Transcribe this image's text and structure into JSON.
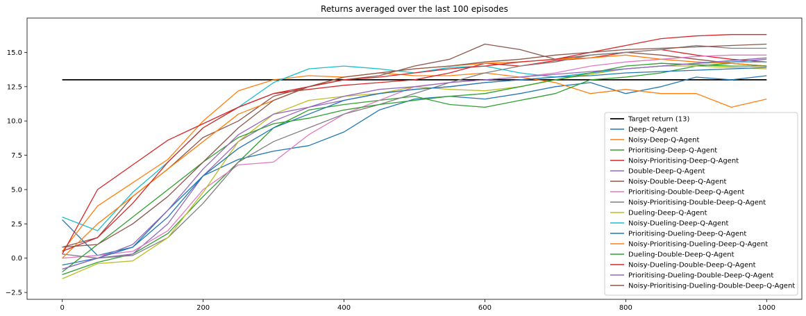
{
  "chart_data": {
    "type": "line",
    "title": "Returns averaged over the last 100 episodes",
    "xlabel": "",
    "ylabel": "",
    "xlim": [
      -50,
      1050
    ],
    "ylim": [
      -3,
      17.5
    ],
    "xticks": [
      0,
      200,
      400,
      600,
      800,
      1000
    ],
    "yticks": [
      -2.5,
      0.0,
      2.5,
      5.0,
      7.5,
      10.0,
      12.5,
      15.0
    ],
    "xtick_labels": [
      "0",
      "200",
      "400",
      "600",
      "800",
      "1000"
    ],
    "ytick_labels": [
      "−2.5",
      "0.0",
      "2.5",
      "5.0",
      "7.5",
      "10.0",
      "12.5",
      "15.0"
    ],
    "grid": false,
    "legend_position": "lower-right",
    "x": [
      0,
      50,
      100,
      150,
      200,
      250,
      300,
      350,
      400,
      450,
      500,
      550,
      600,
      650,
      700,
      750,
      800,
      850,
      900,
      950,
      1000
    ],
    "series": [
      {
        "name": "Target return (13)",
        "color": "#000000",
        "values": [
          13,
          13,
          13,
          13,
          13,
          13,
          13,
          13,
          13,
          13,
          13,
          13,
          13,
          13,
          13,
          13,
          13,
          13,
          13,
          13,
          13
        ]
      },
      {
        "name": "Deep-Q-Agent",
        "color": "#1f77b4",
        "values": [
          2.8,
          0.2,
          0.8,
          3.5,
          6.0,
          7.2,
          7.8,
          8.2,
          9.2,
          10.8,
          11.6,
          11.8,
          11.6,
          12.0,
          12.5,
          12.8,
          12.0,
          12.5,
          13.2,
          13.0,
          13.3
        ]
      },
      {
        "name": "Noisy-Deep-Q-Agent",
        "color": "#ff7f0e",
        "values": [
          0.5,
          3.8,
          5.5,
          7.2,
          10.0,
          12.2,
          13.0,
          13.3,
          13.2,
          13.5,
          13.3,
          13.3,
          13.5,
          13.2,
          12.8,
          12.0,
          12.3,
          12.0,
          12.0,
          11.0,
          11.6
        ]
      },
      {
        "name": "Prioritising-Deep-Q-Agent",
        "color": "#2ca02c",
        "values": [
          -1.2,
          -0.3,
          0.3,
          1.8,
          4.5,
          7.0,
          9.5,
          10.8,
          11.2,
          11.5,
          11.8,
          11.2,
          11.0,
          11.5,
          12.0,
          13.0,
          13.2,
          13.5,
          14.0,
          14.2,
          14.0
        ]
      },
      {
        "name": "Noisy-Prioritising-Deep-Q-Agent",
        "color": "#d62728",
        "values": [
          0.3,
          5.0,
          6.8,
          8.6,
          9.8,
          11.0,
          12.0,
          12.3,
          12.6,
          12.8,
          13.0,
          13.5,
          14.2,
          14.0,
          14.4,
          14.6,
          15.0,
          15.2,
          14.8,
          14.5,
          14.3
        ]
      },
      {
        "name": "Double-Deep-Q-Agent",
        "color": "#9467bd",
        "values": [
          -0.8,
          0.0,
          0.3,
          2.5,
          6.0,
          8.5,
          10.0,
          11.0,
          11.5,
          12.0,
          12.3,
          12.5,
          12.8,
          13.0,
          13.2,
          13.5,
          13.8,
          14.0,
          14.2,
          14.3,
          14.5
        ]
      },
      {
        "name": "Noisy-Double-Deep-Q-Agent",
        "color": "#8c564b",
        "values": [
          0.8,
          1.5,
          4.5,
          6.5,
          8.8,
          10.0,
          11.8,
          12.5,
          13.0,
          13.3,
          14.0,
          14.5,
          15.6,
          15.2,
          14.5,
          14.8,
          15.0,
          14.8,
          14.5,
          14.2,
          14.0
        ]
      },
      {
        "name": "Prioritising-Double-Deep-Q-Agent",
        "color": "#e377c2",
        "values": [
          0.0,
          0.2,
          0.5,
          2.0,
          5.0,
          6.8,
          7.0,
          9.0,
          10.5,
          11.5,
          12.5,
          12.8,
          13.0,
          13.2,
          13.5,
          14.0,
          14.3,
          14.5,
          14.7,
          14.8,
          14.8
        ]
      },
      {
        "name": "Noisy-Prioritising-Double-Deep-Q-Agent",
        "color": "#7f7f7f",
        "values": [
          0.3,
          0.0,
          0.2,
          1.5,
          4.0,
          7.0,
          8.5,
          9.5,
          10.5,
          11.2,
          12.0,
          12.8,
          13.5,
          14.0,
          14.3,
          14.8,
          15.0,
          15.2,
          15.5,
          15.3,
          15.3
        ]
      },
      {
        "name": "Dueling-Deep-Q-Agent",
        "color": "#bcbd22",
        "values": [
          -1.5,
          -0.4,
          -0.2,
          1.5,
          4.8,
          8.5,
          10.5,
          11.5,
          11.8,
          12.0,
          12.5,
          12.3,
          12.2,
          12.5,
          13.0,
          13.4,
          13.8,
          14.0,
          14.0,
          13.9,
          13.8
        ]
      },
      {
        "name": "Noisy-Dueling-Deep-Q-Agent",
        "color": "#17becf",
        "values": [
          3.0,
          2.0,
          4.8,
          7.0,
          9.5,
          11.0,
          12.8,
          13.8,
          14.0,
          13.8,
          13.5,
          13.9,
          14.0,
          13.5,
          13.2,
          13.5,
          13.8,
          14.0,
          14.2,
          14.3,
          14.3
        ]
      },
      {
        "name": "Prioritising-Dueling-Deep-Q-Agent",
        "color": "#1f77b4",
        "values": [
          -0.5,
          0.0,
          0.8,
          3.0,
          6.0,
          8.0,
          9.5,
          10.5,
          11.5,
          12.0,
          12.3,
          12.5,
          12.8,
          13.0,
          13.2,
          13.3,
          13.5,
          13.6,
          13.7,
          13.8,
          13.9
        ]
      },
      {
        "name": "Noisy-Prioritising-Dueling-Deep-Q-Agent",
        "color": "#ff7f0e",
        "values": [
          0.0,
          2.5,
          4.5,
          6.5,
          8.5,
          10.5,
          11.5,
          12.5,
          13.2,
          13.5,
          13.8,
          14.0,
          14.2,
          14.3,
          14.5,
          14.6,
          14.8,
          14.5,
          14.3,
          14.2,
          14.0
        ]
      },
      {
        "name": "Dueling-Double-Deep-Q-Agent",
        "color": "#2ca02c",
        "values": [
          -1.0,
          1.0,
          3.0,
          5.0,
          7.0,
          8.8,
          9.8,
          10.2,
          10.8,
          11.2,
          11.5,
          11.8,
          12.0,
          12.5,
          13.0,
          13.5,
          14.0,
          14.2,
          14.1,
          14.0,
          14.0
        ]
      },
      {
        "name": "Noisy-Dueling-Double-Deep-Q-Agent",
        "color": "#d62728",
        "values": [
          0.5,
          1.5,
          4.0,
          7.0,
          9.5,
          11.0,
          12.0,
          12.5,
          13.0,
          13.2,
          13.5,
          13.8,
          14.0,
          14.3,
          14.5,
          15.0,
          15.5,
          16.0,
          16.2,
          16.3,
          16.3
        ]
      },
      {
        "name": "Prioritising-Dueling-Double-Deep-Q-Agent",
        "color": "#9467bd",
        "values": [
          -0.8,
          0.0,
          1.0,
          3.5,
          6.5,
          9.0,
          10.5,
          11.0,
          11.8,
          12.3,
          12.5,
          12.8,
          13.0,
          13.2,
          13.4,
          13.6,
          13.8,
          14.0,
          14.2,
          14.4,
          14.6
        ]
      },
      {
        "name": "Noisy-Prioritising-Dueling-Double-Deep-Q-Agent",
        "color": "#8c564b",
        "values": [
          0.8,
          1.0,
          2.5,
          4.5,
          7.0,
          9.5,
          11.5,
          12.5,
          13.2,
          13.5,
          13.8,
          14.0,
          14.3,
          14.5,
          14.8,
          15.0,
          15.2,
          15.3,
          15.4,
          15.5,
          15.6
        ]
      }
    ]
  }
}
